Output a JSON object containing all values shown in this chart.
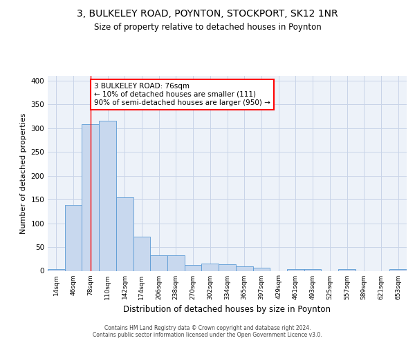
{
  "title1": "3, BULKELEY ROAD, POYNTON, STOCKPORT, SK12 1NR",
  "title2": "Size of property relative to detached houses in Poynton",
  "xlabel": "Distribution of detached houses by size in Poynton",
  "ylabel": "Number of detached properties",
  "categories": [
    "14sqm",
    "46sqm",
    "78sqm",
    "110sqm",
    "142sqm",
    "174sqm",
    "206sqm",
    "238sqm",
    "270sqm",
    "302sqm",
    "334sqm",
    "365sqm",
    "397sqm",
    "429sqm",
    "461sqm",
    "493sqm",
    "525sqm",
    "557sqm",
    "589sqm",
    "621sqm",
    "653sqm"
  ],
  "values": [
    4,
    138,
    308,
    316,
    155,
    72,
    33,
    33,
    12,
    15,
    14,
    10,
    7,
    0,
    4,
    4,
    0,
    3,
    0,
    0,
    3
  ],
  "bar_color": "#c8d8ee",
  "bar_edge_color": "#5b9bd5",
  "grid_color": "#c8d4e8",
  "bg_color": "#edf2f9",
  "red_line_x": 2,
  "annotation_text": "3 BULKELEY ROAD: 76sqm\n← 10% of detached houses are smaller (111)\n90% of semi-detached houses are larger (950) →",
  "annotation_box_color": "white",
  "annotation_border_color": "red",
  "footer": "Contains HM Land Registry data © Crown copyright and database right 2024.\nContains public sector information licensed under the Open Government Licence v3.0.",
  "ylim": [
    0,
    410
  ],
  "yticks": [
    0,
    50,
    100,
    150,
    200,
    250,
    300,
    350,
    400
  ]
}
